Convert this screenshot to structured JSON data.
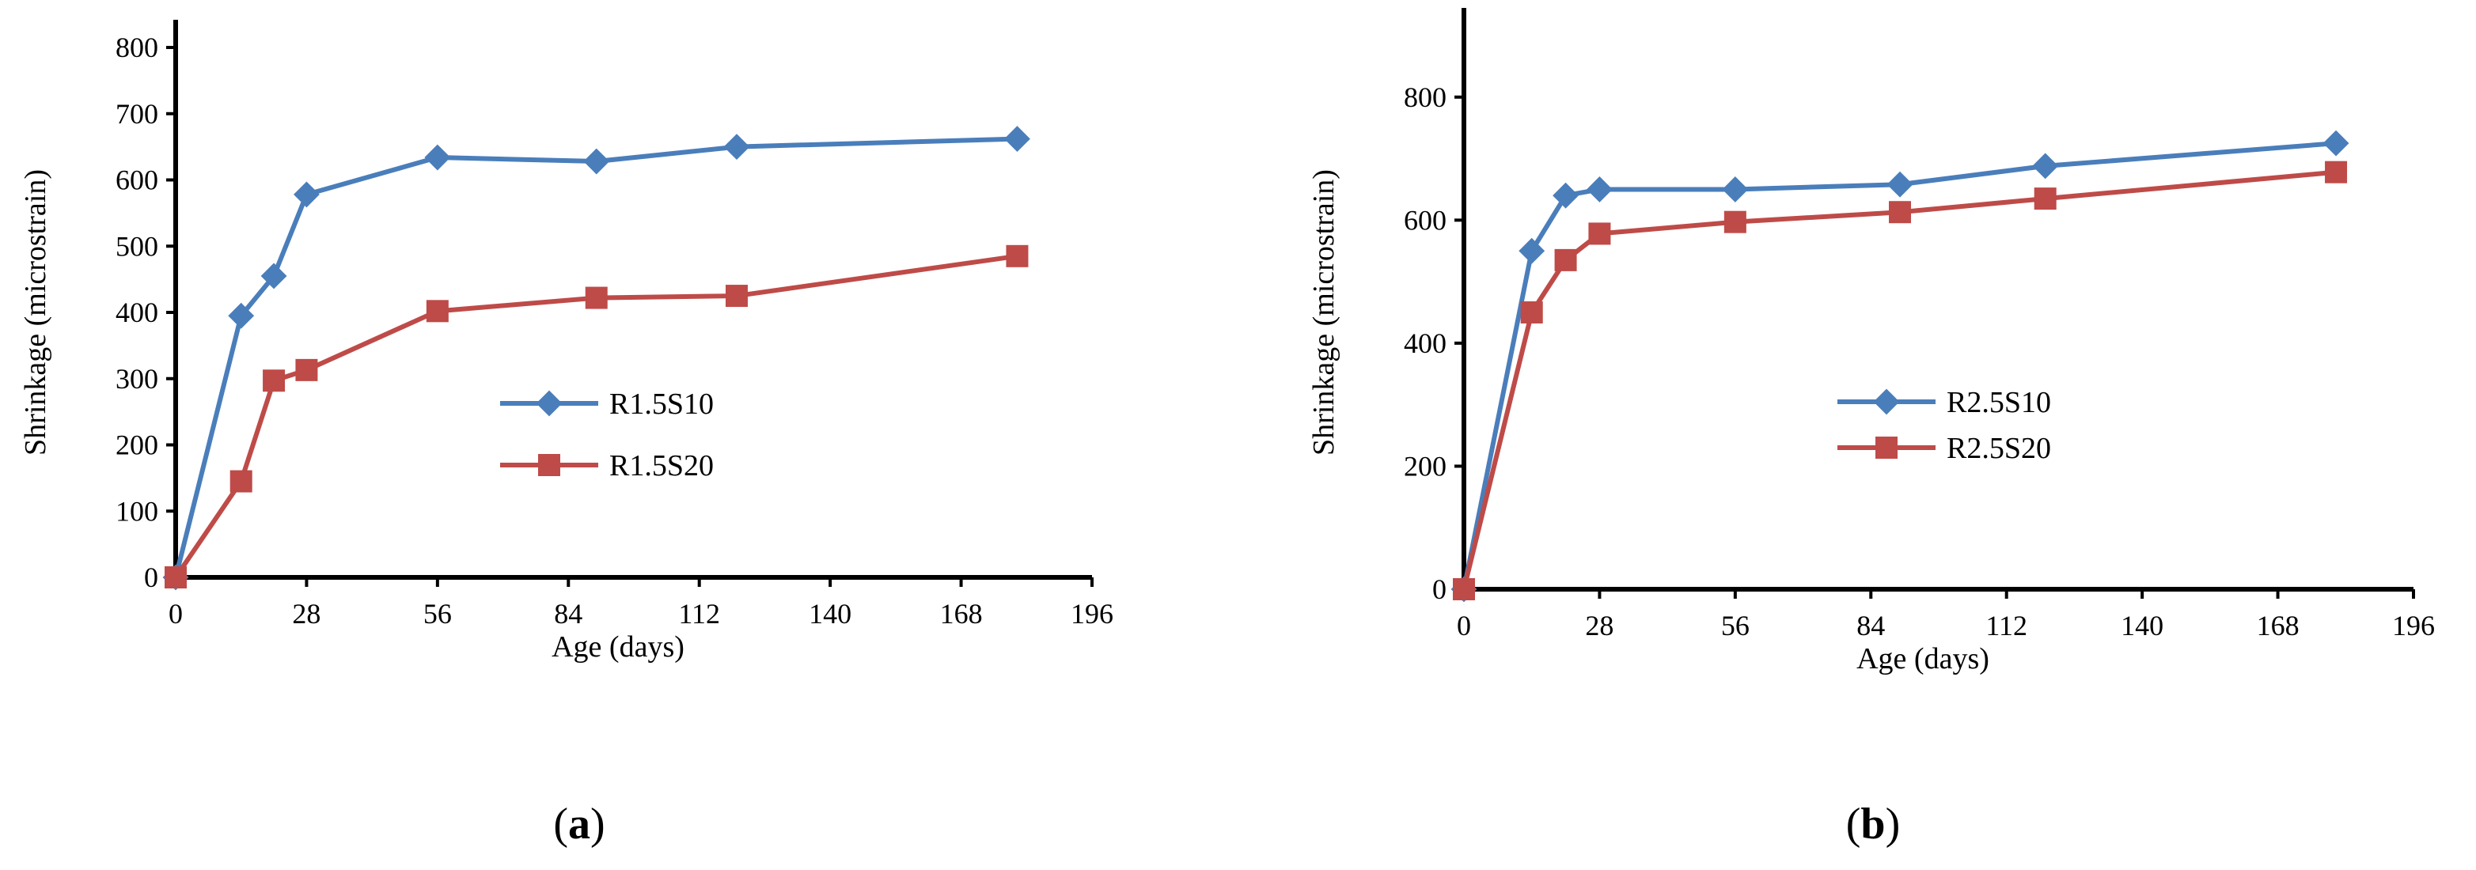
{
  "colors": {
    "series1": "#4a7ebb",
    "series2": "#be4b48",
    "axis": "#000000"
  },
  "chart_data": [
    {
      "type": "line",
      "panel": "a",
      "xlabel": "Age (days)",
      "ylabel": "Shrinkage (microstrain)",
      "xlim": [
        0,
        196
      ],
      "ylim": [
        0,
        800
      ],
      "xticks": [
        0,
        28,
        56,
        84,
        112,
        140,
        168,
        196
      ],
      "yticks": [
        0,
        100,
        200,
        300,
        400,
        500,
        600,
        700,
        800
      ],
      "grid": false,
      "legend_position": "center-right",
      "series": [
        {
          "name": "R1.5S10",
          "marker": "diamond",
          "x": [
            0,
            14,
            21,
            28,
            56,
            90,
            120,
            180
          ],
          "y": [
            0,
            395,
            455,
            578,
            634,
            628,
            650,
            662
          ]
        },
        {
          "name": "R1.5S20",
          "marker": "square",
          "x": [
            0,
            14,
            21,
            28,
            56,
            90,
            120,
            180
          ],
          "y": [
            0,
            145,
            297,
            313,
            402,
            422,
            425,
            485
          ]
        }
      ]
    },
    {
      "type": "line",
      "panel": "b",
      "xlabel": "Age (days)",
      "ylabel": "Shrinkage (microstrain)",
      "xlim": [
        0,
        196
      ],
      "ylim": [
        0,
        900
      ],
      "xticks": [
        0,
        28,
        56,
        84,
        112,
        140,
        168,
        196
      ],
      "yticks": [
        0,
        200,
        400,
        600,
        800
      ],
      "grid": false,
      "legend_position": "center-right",
      "series": [
        {
          "name": "R2.5S10",
          "marker": "diamond",
          "x": [
            0,
            14,
            21,
            28,
            56,
            90,
            120,
            180
          ],
          "y": [
            0,
            550,
            640,
            650,
            650,
            658,
            688,
            725
          ]
        },
        {
          "name": "R2.5S20",
          "marker": "square",
          "x": [
            0,
            14,
            21,
            28,
            56,
            90,
            120,
            180
          ],
          "y": [
            0,
            450,
            535,
            578,
            597,
            613,
            635,
            678
          ]
        }
      ]
    }
  ]
}
